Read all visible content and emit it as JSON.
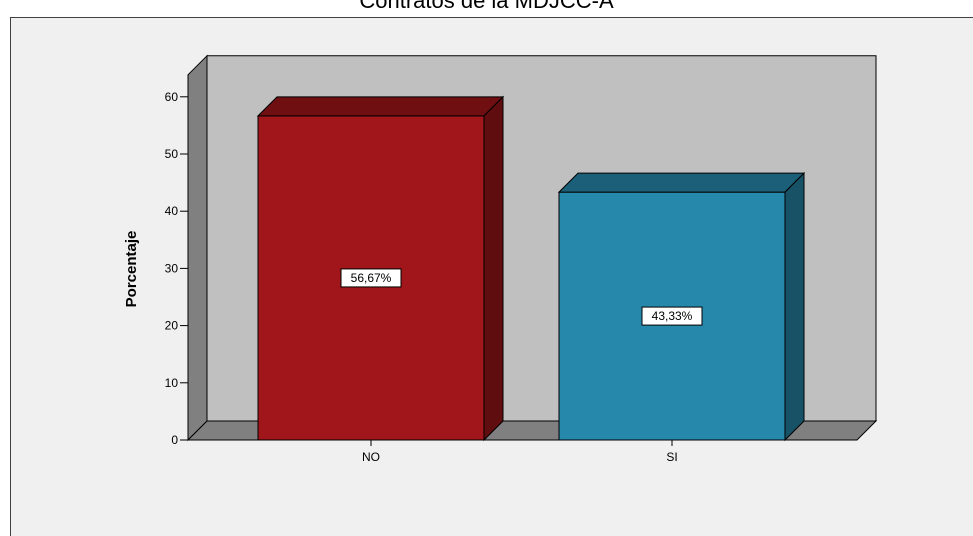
{
  "chart_data": {
    "type": "bar",
    "title": "Contratos de la MDJCC-A",
    "ylabel": "Porcentaje",
    "xlabel": "",
    "categories": [
      "NO",
      "SI"
    ],
    "values": [
      56.67,
      43.33
    ],
    "data_labels": [
      "56,67%",
      "43,33%"
    ],
    "colors": [
      "#a0161a",
      "#2689ab"
    ],
    "ylim": [
      0,
      60
    ],
    "yticks": [
      0,
      10,
      20,
      30,
      40,
      50,
      60
    ],
    "grid": false,
    "legend": "none",
    "style": "3d",
    "background": "#c0c0c0"
  }
}
